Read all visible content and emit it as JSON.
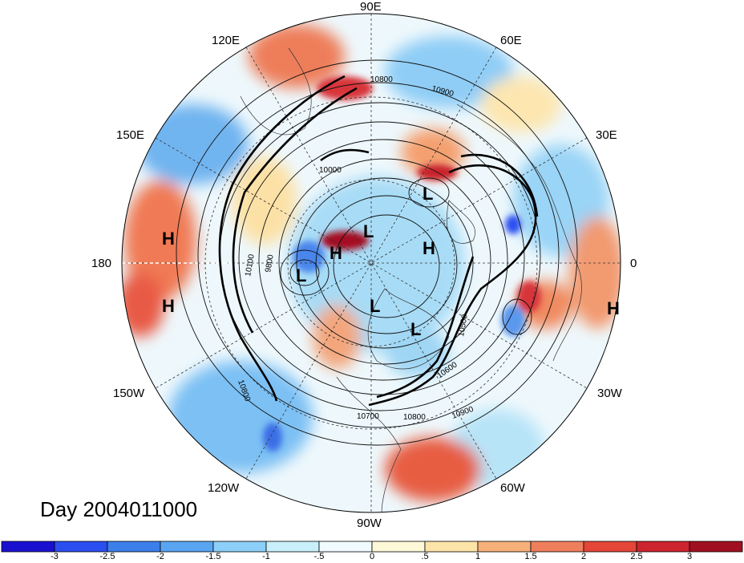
{
  "title": "Day 2004011000",
  "longitude_labels": {
    "lon_90E": "90E",
    "lon_120E": "120E",
    "lon_60E": "60E",
    "lon_150E": "150E",
    "lon_30E": "30E",
    "lon_180": "180",
    "lon_0": "0",
    "lon_150W": "150W",
    "lon_30W": "30W",
    "lon_120W": "120W",
    "lon_60W": "60W",
    "lon_90W": "90W"
  },
  "pressure_centers": [
    {
      "label": "H"
    },
    {
      "label": "H"
    },
    {
      "label": "H"
    },
    {
      "label": "H"
    },
    {
      "label": "H"
    },
    {
      "label": "L"
    },
    {
      "label": "L"
    },
    {
      "label": "L"
    },
    {
      "label": "L"
    },
    {
      "label": "L"
    }
  ],
  "contour_labels": [
    "10800",
    "10900",
    "10000",
    "9800",
    "10100",
    "10600",
    "10700",
    "10800",
    "10900",
    "10500",
    "10800"
  ],
  "colorbar": {
    "colors": [
      "#1a10d0",
      "#2a4ef0",
      "#3d7fea",
      "#5aa5f2",
      "#8ccff8",
      "#c8f0fa",
      "#f0fbff",
      "#fdf8d8",
      "#fce3a8",
      "#f6b07a",
      "#ef7f5c",
      "#e44638",
      "#cc2530",
      "#a00f20"
    ],
    "ticks": [
      "-3",
      "-2.5",
      "-2",
      "-1.5",
      "-1",
      "-.5",
      "0",
      ".5",
      "1",
      "1.5",
      "2",
      "2.5",
      "3"
    ]
  }
}
